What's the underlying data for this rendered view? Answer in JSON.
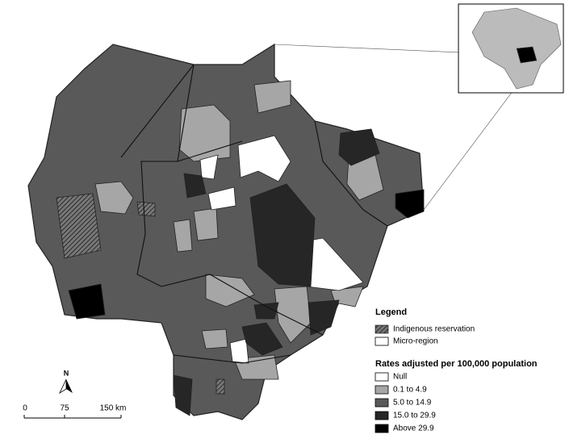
{
  "legend": {
    "title": "Legend",
    "items": [
      {
        "label": "Indigenous reservation"
      },
      {
        "label": "Micro-region"
      }
    ]
  },
  "rates": {
    "title": "Rates adjusted per 100,000 population",
    "classes": [
      {
        "label": "Null",
        "color": "#ffffff"
      },
      {
        "label": "0.1 to 4.9",
        "color": "#a6a6a6"
      },
      {
        "label": "5.0 to 14.9",
        "color": "#595959"
      },
      {
        "label": "15.0 to 29.9",
        "color": "#262626"
      },
      {
        "label": "Above 29.9",
        "color": "#000000"
      }
    ]
  },
  "scale_bar": {
    "ticks": [
      "0",
      "75",
      "150 km"
    ]
  },
  "north": "N"
}
